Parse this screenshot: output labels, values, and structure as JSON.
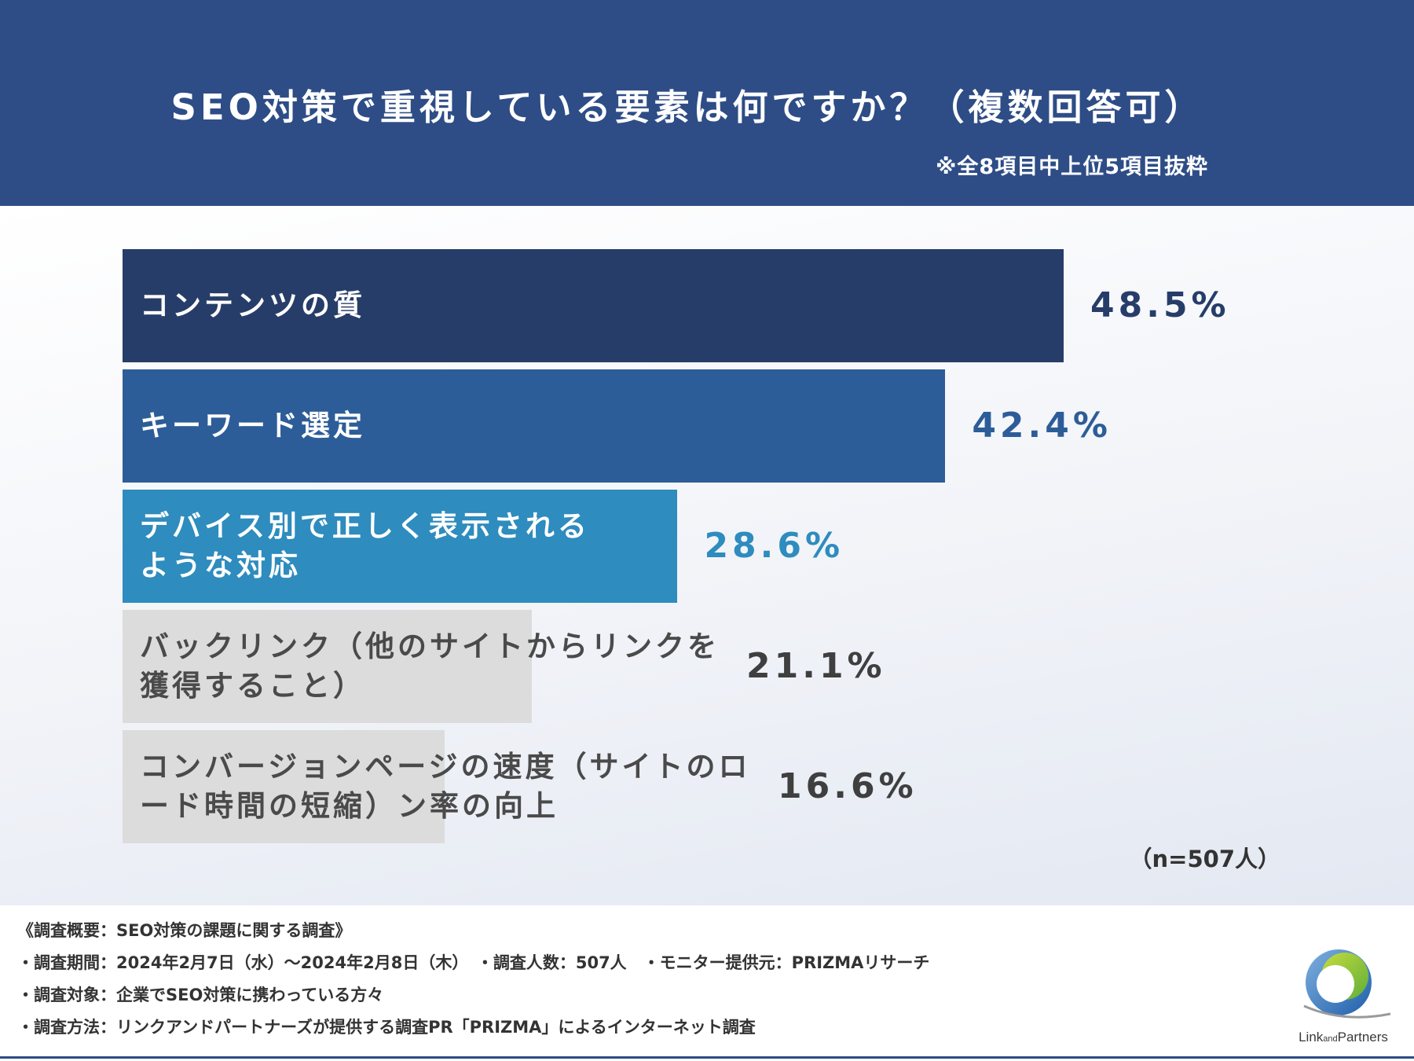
{
  "header": {
    "title": "SEO対策で重視している要素は何ですか？（複数回答可）",
    "subnote": "※全8項目中上位5項目抜粋"
  },
  "chart_data": {
    "type": "bar",
    "orientation": "horizontal",
    "title": "SEO対策で重視している要素は何ですか？（複数回答可）",
    "categories": [
      "コンテンツの質",
      "キーワード選定",
      "デバイス別で正しく表示されるような対応",
      "バックリンク（他のサイトからリンクを獲得すること）",
      "コンバージョンページの速度（サイトのロード時間の短縮）ン率の向上"
    ],
    "display_labels": [
      "コンテンツの質",
      "キーワード選定",
      "デバイス別で正しく表示される\nような対応",
      "バックリンク（他のサイトからリンクを\n獲得すること）",
      "コンバージョンページの速度（サイトのロ\nード時間の短縮）ン率の向上"
    ],
    "values": [
      48.5,
      42.4,
      28.6,
      21.1,
      16.6
    ],
    "value_labels": [
      "48.5%",
      "42.4%",
      "28.6%",
      "21.1%",
      "16.6%"
    ],
    "unit": "%",
    "xlim": [
      0,
      48.5
    ],
    "bar_colors": [
      "#273d69",
      "#2d5d98",
      "#2e8cbe",
      "#dcdcdc",
      "#dcdcdc"
    ],
    "label_colors": [
      "#ffffff",
      "#ffffff",
      "#ffffff",
      "#4a4a4a",
      "#4a4a4a"
    ],
    "value_colors": [
      "#273d69",
      "#2d5d98",
      "#2e8cbe",
      "#3f3f3f",
      "#3f3f3f"
    ],
    "sample_note": "（n=507人）"
  },
  "footer": {
    "lines": [
      "《調査概要：SEO対策の課題に関する調査》",
      "・調査期間：2024年2月7日（水）～2024年2月8日（木）　・調査人数：507人　・モニター提供元：PRIZMAリサーチ",
      "・調査対象：企業でSEO対策に携わっている方々",
      "・調査方法：リンクアンドパートナーズが提供する調査PR「PRIZMA」によるインターネット調査"
    ]
  },
  "logo": {
    "text_main_1": "Link",
    "text_small": "and",
    "text_main_2": "Partners"
  }
}
